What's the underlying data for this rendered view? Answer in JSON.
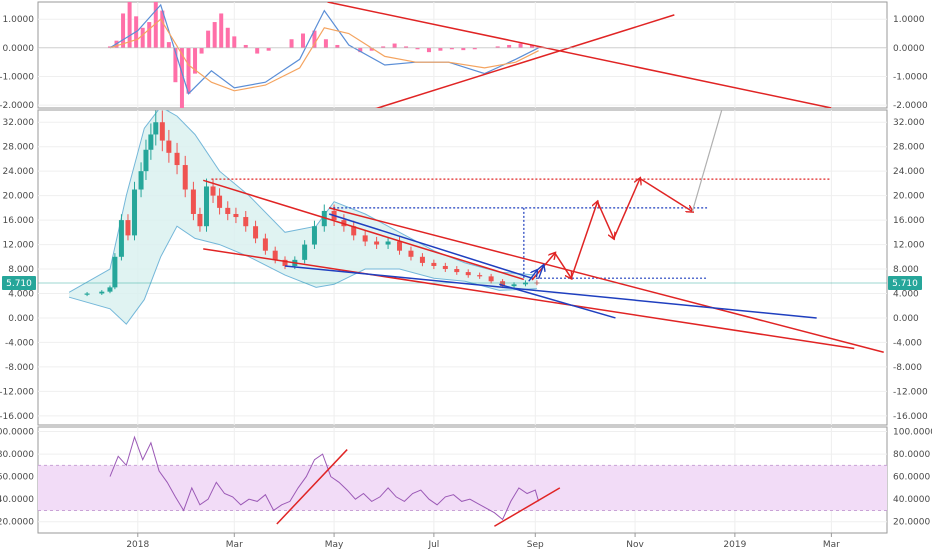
{
  "chart_data": [
    {
      "type": "bar",
      "panel": "macd",
      "yticks": [
        "1.0000",
        "0.0000",
        "-1.0000",
        "-2.0000"
      ],
      "ytick_values": [
        1,
        0,
        -1,
        -2
      ],
      "ylim": [
        -2.1,
        1.6
      ],
      "histogram": {
        "x": [
          "2017-12-15",
          "2017-12-19",
          "2017-12-23",
          "2017-12-27",
          "2017-12-31",
          "2018-01-04",
          "2018-01-08",
          "2018-01-12",
          "2018-01-16",
          "2018-01-20",
          "2018-01-24",
          "2018-01-28",
          "2018-02-01",
          "2018-02-05",
          "2018-02-09",
          "2018-02-13",
          "2018-02-17",
          "2018-02-21",
          "2018-02-25",
          "2018-03-01",
          "2018-03-08",
          "2018-03-15",
          "2018-03-22",
          "2018-03-29",
          "2018-04-05",
          "2018-04-12",
          "2018-04-19",
          "2018-04-26",
          "2018-05-03",
          "2018-05-10",
          "2018-05-17",
          "2018-05-24",
          "2018-05-31",
          "2018-06-07",
          "2018-06-14",
          "2018-06-21",
          "2018-06-28",
          "2018-07-05",
          "2018-07-12",
          "2018-07-19",
          "2018-07-26",
          "2018-08-02",
          "2018-08-09",
          "2018-08-16",
          "2018-08-23",
          "2018-08-30",
          "2018-09-03"
        ],
        "values": [
          0.05,
          0.25,
          1.2,
          1.6,
          1.1,
          0.7,
          0.9,
          1.6,
          1.3,
          0.2,
          -1.2,
          -2.1,
          -1.6,
          -0.9,
          -0.2,
          0.6,
          0.9,
          1.2,
          0.7,
          0.4,
          0.1,
          -0.2,
          -0.1,
          0.0,
          0.3,
          0.5,
          0.6,
          0.3,
          0.1,
          0.0,
          -0.15,
          -0.1,
          0.05,
          0.15,
          0.05,
          -0.05,
          -0.15,
          -0.1,
          -0.05,
          -0.08,
          -0.05,
          0.0,
          0.05,
          0.1,
          0.15,
          0.1,
          0.05
        ]
      },
      "macd_line": {
        "x": [
          "2017-12-15",
          "2018-01-01",
          "2018-01-15",
          "2018-02-01",
          "2018-02-15",
          "2018-03-01",
          "2018-03-20",
          "2018-04-10",
          "2018-04-25",
          "2018-05-10",
          "2018-06-01",
          "2018-06-20",
          "2018-07-10",
          "2018-08-01",
          "2018-08-20",
          "2018-09-03"
        ],
        "values": [
          0.0,
          0.6,
          1.5,
          -1.6,
          -0.8,
          -1.4,
          -1.2,
          -0.4,
          1.3,
          0.1,
          -0.6,
          -0.5,
          -0.5,
          -0.9,
          -0.4,
          0.0
        ]
      },
      "signal_line": {
        "x": [
          "2017-12-15",
          "2018-01-01",
          "2018-01-15",
          "2018-02-01",
          "2018-02-15",
          "2018-03-01",
          "2018-03-20",
          "2018-04-10",
          "2018-04-25",
          "2018-05-10",
          "2018-06-01",
          "2018-06-20",
          "2018-07-10",
          "2018-08-01",
          "2018-08-20",
          "2018-09-03"
        ],
        "values": [
          0.0,
          0.3,
          1.0,
          -0.6,
          -1.2,
          -1.5,
          -1.3,
          -0.7,
          0.7,
          0.5,
          -0.3,
          -0.5,
          -0.5,
          -0.7,
          -0.5,
          -0.1
        ]
      },
      "trendlines": [
        {
          "x1": "2018-04-27",
          "y1": 1.6,
          "x2": "2019-03-01",
          "y2": -2.1,
          "color": "#e02424"
        },
        {
          "x1": "2018-05-22",
          "y1": -2.2,
          "x2": "2018-11-25",
          "y2": 1.15,
          "color": "#e02424"
        }
      ]
    },
    {
      "type": "candlestick",
      "panel": "price",
      "yticks": [
        "32.000",
        "28.000",
        "24.000",
        "20.000",
        "16.000",
        "12.000",
        "8.000",
        "4.000",
        "0.000",
        "-4.000",
        "-8.000",
        "-12.000",
        "-16.000"
      ],
      "ytick_values": [
        32,
        28,
        24,
        20,
        16,
        12,
        8,
        4,
        0,
        -4,
        -8,
        -12,
        -16
      ],
      "ylim": [
        -17.5,
        34
      ],
      "last_price_label": "5.710",
      "last_price": 5.71,
      "xticks": [
        "2018",
        "Mar",
        "May",
        "Jul",
        "Sep",
        "Nov",
        "2019",
        "Mar"
      ],
      "xtick_dates": [
        "2018-01-01",
        "2018-03-01",
        "2018-05-01",
        "2018-07-01",
        "2018-09-01",
        "2018-11-01",
        "2019-01-01",
        "2019-03-01"
      ],
      "xlim": [
        "2017-11-01",
        "2019-04-04"
      ],
      "price_path": {
        "x": [
          "2017-11-20",
          "2017-12-01",
          "2017-12-10",
          "2017-12-15",
          "2017-12-18",
          "2017-12-22",
          "2017-12-26",
          "2017-12-30",
          "2018-01-03",
          "2018-01-06",
          "2018-01-09",
          "2018-01-12",
          "2018-01-16",
          "2018-01-20",
          "2018-01-25",
          "2018-01-30",
          "2018-02-04",
          "2018-02-08",
          "2018-02-12",
          "2018-02-16",
          "2018-02-20",
          "2018-02-25",
          "2018-03-02",
          "2018-03-08",
          "2018-03-14",
          "2018-03-20",
          "2018-03-26",
          "2018-04-01",
          "2018-04-07",
          "2018-04-13",
          "2018-04-19",
          "2018-04-25",
          "2018-05-01",
          "2018-05-07",
          "2018-05-13",
          "2018-05-20",
          "2018-05-27",
          "2018-06-03",
          "2018-06-10",
          "2018-06-17",
          "2018-06-24",
          "2018-07-01",
          "2018-07-08",
          "2018-07-15",
          "2018-07-22",
          "2018-07-29",
          "2018-08-05",
          "2018-08-12",
          "2018-08-19",
          "2018-08-26",
          "2018-09-02"
        ],
        "values": [
          3.8,
          4.0,
          4.3,
          5.0,
          10.0,
          16.0,
          13.5,
          21.0,
          24.0,
          27.5,
          30.0,
          32.0,
          29.0,
          27.0,
          25.0,
          21.0,
          17.0,
          15.0,
          21.5,
          20.0,
          18.0,
          17.0,
          16.5,
          15.0,
          13.0,
          11.0,
          9.5,
          8.5,
          9.5,
          12.0,
          15.0,
          17.5,
          16.0,
          15.0,
          13.5,
          12.5,
          12.0,
          12.5,
          11.0,
          10.0,
          9.0,
          8.5,
          8.0,
          7.5,
          7.0,
          6.8,
          6.0,
          5.2,
          5.5,
          5.8,
          5.7
        ]
      },
      "bollinger_upper": {
        "x": [
          "2017-11-20",
          "2017-12-15",
          "2017-12-25",
          "2018-01-05",
          "2018-01-15",
          "2018-01-25",
          "2018-02-05",
          "2018-02-20",
          "2018-03-10",
          "2018-04-01",
          "2018-04-20",
          "2018-05-01",
          "2018-05-20",
          "2018-06-10",
          "2018-07-01",
          "2018-07-20",
          "2018-08-10",
          "2018-09-02"
        ],
        "values": [
          4.2,
          8.0,
          20.0,
          31.0,
          34.5,
          33.0,
          30.0,
          24.0,
          20.0,
          14.0,
          15.0,
          19.0,
          17.0,
          14.0,
          11.0,
          9.0,
          7.5,
          7.0
        ]
      },
      "bollinger_lower": {
        "x": [
          "2017-11-20",
          "2017-12-15",
          "2017-12-25",
          "2018-01-05",
          "2018-01-15",
          "2018-01-25",
          "2018-02-05",
          "2018-02-20",
          "2018-03-10",
          "2018-04-01",
          "2018-04-20",
          "2018-05-01",
          "2018-05-20",
          "2018-06-10",
          "2018-07-01",
          "2018-07-20",
          "2018-08-10",
          "2018-09-02"
        ],
        "values": [
          3.4,
          1.5,
          -1.0,
          3.0,
          10.0,
          15.0,
          13.0,
          12.0,
          10.0,
          7.0,
          5.0,
          5.5,
          8.0,
          8.0,
          6.5,
          6.0,
          4.5,
          4.8
        ]
      },
      "red_lines": [
        {
          "x1": "2018-02-10",
          "y1": 22.5,
          "x2": "2018-08-25",
          "y2": 6.3
        },
        {
          "x1": "2018-02-10",
          "y1": 11.3,
          "x2": "2019-03-15",
          "y2": -5.0
        },
        {
          "x1": "2018-04-28",
          "y1": 18.0,
          "x2": "2019-04-02",
          "y2": -5.6
        }
      ],
      "blue_lines": [
        {
          "x1": "2018-04-28",
          "y1": 17.0,
          "x2": "2018-08-30",
          "y2": 6.5
        },
        {
          "x1": "2018-04-01",
          "y1": 8.5,
          "x2": "2019-02-20",
          "y2": 0.0
        },
        {
          "x1": "2018-08-10",
          "y1": 5.5,
          "x2": "2018-10-20",
          "y2": 0.0
        }
      ],
      "dotted_levels": [
        {
          "x1": "2018-02-15",
          "x2": "2019-02-28",
          "y": 22.7,
          "color": "#e02424"
        },
        {
          "x1": "2018-04-28",
          "x2": "2018-12-15",
          "y": 18.0,
          "color": "#1f3fbf"
        },
        {
          "x1": "2018-08-30",
          "x2": "2018-12-15",
          "y": 6.5,
          "color": "#1f3fbf"
        }
      ],
      "measure_line": {
        "x": "2018-08-25",
        "y1": 18.0,
        "y2": 6.3
      },
      "projection_path": {
        "x": [
          "2018-08-30",
          "2018-09-13",
          "2018-09-23",
          "2018-10-09",
          "2018-10-19",
          "2018-11-04",
          "2018-12-06"
        ],
        "values": [
          6.2,
          10.6,
          6.5,
          19.0,
          13.0,
          22.8,
          17.4
        ]
      },
      "projection_extension": {
        "x1": "2018-12-06",
        "y1": 17.4,
        "x2": "2018-12-24",
        "y2": 35.0
      },
      "blue_arrows": [
        {
          "x1": "2018-08-28",
          "y1": 6.0,
          "x2": "2018-09-02",
          "y2": 7.8
        },
        {
          "x1": "2018-09-03",
          "y1": 6.4,
          "x2": "2018-09-06",
          "y2": 8.6
        }
      ]
    },
    {
      "type": "line",
      "panel": "rsi",
      "yticks": [
        "100.0000",
        "80.0000",
        "60.0000",
        "40.0000",
        "20.0000"
      ],
      "ytick_values": [
        100,
        80,
        60,
        40,
        20
      ],
      "ylim": [
        10,
        104
      ],
      "band": [
        30,
        70
      ],
      "rsi_line": {
        "x": [
          "2017-12-15",
          "2017-12-20",
          "2017-12-25",
          "2017-12-30",
          "2018-01-04",
          "2018-01-09",
          "2018-01-14",
          "2018-01-19",
          "2018-01-24",
          "2018-01-29",
          "2018-02-03",
          "2018-02-08",
          "2018-02-13",
          "2018-02-18",
          "2018-02-23",
          "2018-02-28",
          "2018-03-05",
          "2018-03-10",
          "2018-03-15",
          "2018-03-20",
          "2018-03-25",
          "2018-03-30",
          "2018-04-04",
          "2018-04-09",
          "2018-04-14",
          "2018-04-19",
          "2018-04-24",
          "2018-04-29",
          "2018-05-04",
          "2018-05-09",
          "2018-05-14",
          "2018-05-19",
          "2018-05-24",
          "2018-05-29",
          "2018-06-03",
          "2018-06-08",
          "2018-06-13",
          "2018-06-18",
          "2018-06-23",
          "2018-06-28",
          "2018-07-03",
          "2018-07-08",
          "2018-07-13",
          "2018-07-18",
          "2018-07-23",
          "2018-07-28",
          "2018-08-02",
          "2018-08-07",
          "2018-08-12",
          "2018-08-17",
          "2018-08-22",
          "2018-08-27",
          "2018-09-01",
          "2018-09-03"
        ],
        "values": [
          60,
          78,
          70,
          95,
          75,
          90,
          65,
          55,
          42,
          30,
          50,
          35,
          40,
          55,
          45,
          42,
          35,
          40,
          38,
          44,
          30,
          35,
          38,
          50,
          60,
          75,
          80,
          60,
          55,
          48,
          40,
          45,
          38,
          42,
          50,
          42,
          38,
          45,
          48,
          40,
          35,
          42,
          44,
          38,
          40,
          36,
          32,
          28,
          22,
          38,
          50,
          45,
          48,
          38
        ]
      },
      "trendlines": [
        {
          "x1": "2018-03-27",
          "y1": 18,
          "x2": "2018-05-09",
          "y2": 84
        },
        {
          "x1": "2018-08-07",
          "y1": 16,
          "x2": "2018-09-16",
          "y2": 50
        }
      ]
    }
  ],
  "colors": {
    "up": "#26a69a",
    "down": "#ef5350",
    "macd_hist": "#ff6fa8",
    "macd_line": "#5b8ed6",
    "signal_line": "#f4a460",
    "trend_red": "#e02424",
    "trend_blue": "#1f3fbf",
    "bollinger_fill": "#d8f0ef",
    "bollinger_line": "#74b7d9",
    "rsi_line": "#9b59b6",
    "rsi_band": "#f2dcf7",
    "last_price_bg": "#26a69a"
  }
}
